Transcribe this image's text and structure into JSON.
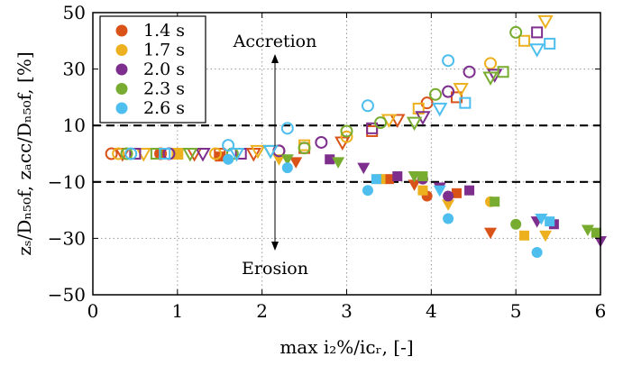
{
  "chart_data": {
    "type": "scatter",
    "xlabel": "max i₂%/iᴄᵣ, [-]",
    "ylabel": "zₛ/Dₙ₅₀f, zₐcc/Dₙ₅₀f, [%]",
    "xlim": [
      0,
      6
    ],
    "ylim": [
      -50,
      50
    ],
    "xticks": [
      "0",
      "1",
      "2",
      "3",
      "4",
      "5",
      "6"
    ],
    "yticks": [
      "−50",
      "−30",
      "−10",
      "10",
      "30",
      "50"
    ],
    "xtick_values": [
      0,
      1,
      2,
      3,
      4,
      5,
      6
    ],
    "ytick_values": [
      -50,
      -30,
      -10,
      10,
      30,
      50
    ],
    "grid": true,
    "legend_position": "top-left",
    "threshold_lines": [
      10,
      -10
    ],
    "annotations": {
      "accretion": "Accretion",
      "erosion": "Erosion"
    },
    "series": [
      {
        "name": "1.4 s",
        "color": "#d95319",
        "points": [
          {
            "x": 0.22,
            "y": 0,
            "m": "co"
          },
          {
            "x": 0.35,
            "y": 0,
            "m": "to"
          },
          {
            "x": 0.5,
            "y": 0,
            "m": "so"
          },
          {
            "x": 0.8,
            "y": 0,
            "m": "co"
          },
          {
            "x": 1.2,
            "y": 0,
            "m": "to"
          },
          {
            "x": 1.5,
            "y": 0,
            "m": "so"
          },
          {
            "x": 1.9,
            "y": 0,
            "m": "to"
          },
          {
            "x": 2.2,
            "y": 1,
            "m": "co"
          },
          {
            "x": 2.5,
            "y": 2,
            "m": "so"
          },
          {
            "x": 2.95,
            "y": 4,
            "m": "to"
          },
          {
            "x": 3.3,
            "y": 8,
            "m": "so"
          },
          {
            "x": 3.6,
            "y": 12,
            "m": "to"
          },
          {
            "x": 3.95,
            "y": 18,
            "m": "co"
          },
          {
            "x": 4.3,
            "y": 20,
            "m": "so"
          },
          {
            "x": 0.8,
            "y": 0,
            "m": "cf"
          },
          {
            "x": 1.5,
            "y": -1,
            "m": "sf"
          },
          {
            "x": 2.4,
            "y": -3,
            "m": "tf"
          },
          {
            "x": 3.5,
            "y": -9,
            "m": "sf"
          },
          {
            "x": 3.8,
            "y": -11,
            "m": "tf"
          },
          {
            "x": 3.95,
            "y": -15,
            "m": "cf"
          },
          {
            "x": 4.3,
            "y": -14,
            "m": "sf"
          },
          {
            "x": 4.7,
            "y": -28,
            "m": "tf"
          }
        ]
      },
      {
        "name": "1.7 s",
        "color": "#edb120",
        "points": [
          {
            "x": 0.3,
            "y": 0,
            "m": "co"
          },
          {
            "x": 0.6,
            "y": 0,
            "m": "to"
          },
          {
            "x": 1.0,
            "y": 0,
            "m": "so"
          },
          {
            "x": 1.45,
            "y": 0,
            "m": "co"
          },
          {
            "x": 1.95,
            "y": 1,
            "m": "to"
          },
          {
            "x": 2.5,
            "y": 3,
            "m": "so"
          },
          {
            "x": 3.0,
            "y": 6,
            "m": "co"
          },
          {
            "x": 3.5,
            "y": 12,
            "m": "to"
          },
          {
            "x": 3.85,
            "y": 16,
            "m": "so"
          },
          {
            "x": 4.35,
            "y": 23,
            "m": "to"
          },
          {
            "x": 4.7,
            "y": 32,
            "m": "co"
          },
          {
            "x": 5.1,
            "y": 40,
            "m": "so"
          },
          {
            "x": 5.35,
            "y": 47,
            "m": "to"
          },
          {
            "x": 1.0,
            "y": 0,
            "m": "cf"
          },
          {
            "x": 2.2,
            "y": -2,
            "m": "tf"
          },
          {
            "x": 3.4,
            "y": -9,
            "m": "sf"
          },
          {
            "x": 3.9,
            "y": -13,
            "m": "sf"
          },
          {
            "x": 4.2,
            "y": -18,
            "m": "tf"
          },
          {
            "x": 4.7,
            "y": -17,
            "m": "cf"
          },
          {
            "x": 5.1,
            "y": -29,
            "m": "sf"
          },
          {
            "x": 5.35,
            "y": -29,
            "m": "tf"
          }
        ]
      },
      {
        "name": "2.0 s",
        "color": "#7e2f8e",
        "points": [
          {
            "x": 0.5,
            "y": 0,
            "m": "so"
          },
          {
            "x": 0.9,
            "y": 0,
            "m": "co"
          },
          {
            "x": 1.3,
            "y": 0,
            "m": "to"
          },
          {
            "x": 1.75,
            "y": 0,
            "m": "so"
          },
          {
            "x": 2.2,
            "y": 1,
            "m": "co"
          },
          {
            "x": 2.7,
            "y": 4,
            "m": "co"
          },
          {
            "x": 3.3,
            "y": 9,
            "m": "so"
          },
          {
            "x": 3.9,
            "y": 13,
            "m": "to"
          },
          {
            "x": 4.2,
            "y": 22,
            "m": "co"
          },
          {
            "x": 4.45,
            "y": 29,
            "m": "co"
          },
          {
            "x": 4.75,
            "y": 28,
            "m": "to"
          },
          {
            "x": 5.25,
            "y": 43,
            "m": "so"
          },
          {
            "x": 2.8,
            "y": -2,
            "m": "sf"
          },
          {
            "x": 3.2,
            "y": -5,
            "m": "tf"
          },
          {
            "x": 3.6,
            "y": -8,
            "m": "sf"
          },
          {
            "x": 3.9,
            "y": -9,
            "m": "cf"
          },
          {
            "x": 4.1,
            "y": -12,
            "m": "tf"
          },
          {
            "x": 4.2,
            "y": -15,
            "m": "cf"
          },
          {
            "x": 4.45,
            "y": -13,
            "m": "sf"
          },
          {
            "x": 5.25,
            "y": -24,
            "m": "tf"
          },
          {
            "x": 5.45,
            "y": -25,
            "m": "sf"
          },
          {
            "x": 6.0,
            "y": -31,
            "m": "tf"
          }
        ]
      },
      {
        "name": "2.3 s",
        "color": "#77ac30",
        "points": [
          {
            "x": 0.4,
            "y": 0,
            "m": "co"
          },
          {
            "x": 0.75,
            "y": 0,
            "m": "so"
          },
          {
            "x": 1.15,
            "y": 0,
            "m": "to"
          },
          {
            "x": 1.65,
            "y": 0,
            "m": "co"
          },
          {
            "x": 2.1,
            "y": 1,
            "m": "to"
          },
          {
            "x": 2.5,
            "y": 2,
            "m": "co"
          },
          {
            "x": 3.0,
            "y": 8,
            "m": "co"
          },
          {
            "x": 3.4,
            "y": 11,
            "m": "co"
          },
          {
            "x": 3.8,
            "y": 11,
            "m": "to"
          },
          {
            "x": 4.05,
            "y": 21,
            "m": "co"
          },
          {
            "x": 4.7,
            "y": 27,
            "m": "to"
          },
          {
            "x": 4.85,
            "y": 29,
            "m": "so"
          },
          {
            "x": 5.0,
            "y": 43,
            "m": "co"
          },
          {
            "x": 2.3,
            "y": -2,
            "m": "tf"
          },
          {
            "x": 2.9,
            "y": -3,
            "m": "tf"
          },
          {
            "x": 3.8,
            "y": -8,
            "m": "tf"
          },
          {
            "x": 3.9,
            "y": -8,
            "m": "sf"
          },
          {
            "x": 4.75,
            "y": -17,
            "m": "sf"
          },
          {
            "x": 5.0,
            "y": -25,
            "m": "cf"
          },
          {
            "x": 5.85,
            "y": -27,
            "m": "tf"
          },
          {
            "x": 5.95,
            "y": -28,
            "m": "sf"
          }
        ]
      },
      {
        "name": "2.6 s",
        "color": "#4dbeee",
        "points": [
          {
            "x": 0.45,
            "y": 0,
            "m": "co"
          },
          {
            "x": 0.85,
            "y": 0,
            "m": "so"
          },
          {
            "x": 1.6,
            "y": 3,
            "m": "co"
          },
          {
            "x": 1.7,
            "y": 0,
            "m": "to"
          },
          {
            "x": 2.1,
            "y": 1,
            "m": "to"
          },
          {
            "x": 2.3,
            "y": 9,
            "m": "co"
          },
          {
            "x": 3.25,
            "y": 17,
            "m": "co"
          },
          {
            "x": 4.2,
            "y": 33,
            "m": "co"
          },
          {
            "x": 4.1,
            "y": 16,
            "m": "to"
          },
          {
            "x": 4.4,
            "y": 18,
            "m": "so"
          },
          {
            "x": 5.25,
            "y": 37,
            "m": "to"
          },
          {
            "x": 5.4,
            "y": 39,
            "m": "so"
          },
          {
            "x": 1.6,
            "y": -2,
            "m": "cf"
          },
          {
            "x": 2.3,
            "y": -5,
            "m": "cf"
          },
          {
            "x": 3.25,
            "y": -13,
            "m": "cf"
          },
          {
            "x": 3.35,
            "y": -9,
            "m": "sf"
          },
          {
            "x": 4.1,
            "y": -13,
            "m": "tf"
          },
          {
            "x": 4.2,
            "y": -23,
            "m": "cf"
          },
          {
            "x": 5.25,
            "y": -35,
            "m": "cf"
          },
          {
            "x": 5.3,
            "y": -23,
            "m": "tf"
          },
          {
            "x": 5.4,
            "y": -24,
            "m": "sf"
          }
        ]
      }
    ]
  }
}
